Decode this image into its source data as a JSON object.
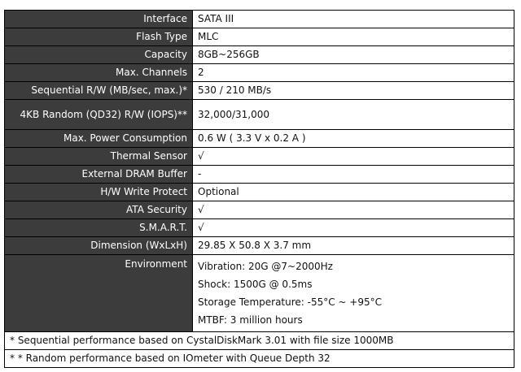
{
  "rows": [
    {
      "label": "Interface",
      "value": "SATA III"
    },
    {
      "label": "Flash Type",
      "value": "MLC"
    },
    {
      "label": "Capacity",
      "value": "8GB~256GB"
    },
    {
      "label": "Max. Channels",
      "value": "2"
    },
    {
      "label": "Sequential R/W (MB/sec, max.)*",
      "value": "530 / 210 MB/s"
    },
    {
      "label": "4KB Random (QD32) R/W (IOPS)**",
      "value": "32,000/31,000"
    },
    {
      "label": "Max. Power Consumption",
      "value": "0.6 W ( 3.3 V x 0.2 A )"
    },
    {
      "label": "Thermal Sensor",
      "value": "√"
    },
    {
      "label": "External DRAM Buffer",
      "value": "-"
    },
    {
      "label": "H/W Write Protect",
      "value": "Optional"
    },
    {
      "label": "ATA Security",
      "value": "√"
    },
    {
      "label": "S.M.A.R.T.",
      "value": "√"
    },
    {
      "label": "Dimension (WxLxH)",
      "value": "29.85 X 50.8 X 3.7 mm"
    }
  ],
  "environment": {
    "label": "Environment",
    "lines": [
      "Vibration: 20G @7~2000Hz",
      "Shock: 1500G @ 0.5ms",
      "Storage Temperature: -55°C ~ +95°C",
      "MTBF: 3 million hours"
    ]
  },
  "footnotes": [
    "* Sequential performance based on CystalDiskMark 3.01 with file size 1000MB",
    "* * Random performance based on IOmeter with Queue Depth 32"
  ]
}
